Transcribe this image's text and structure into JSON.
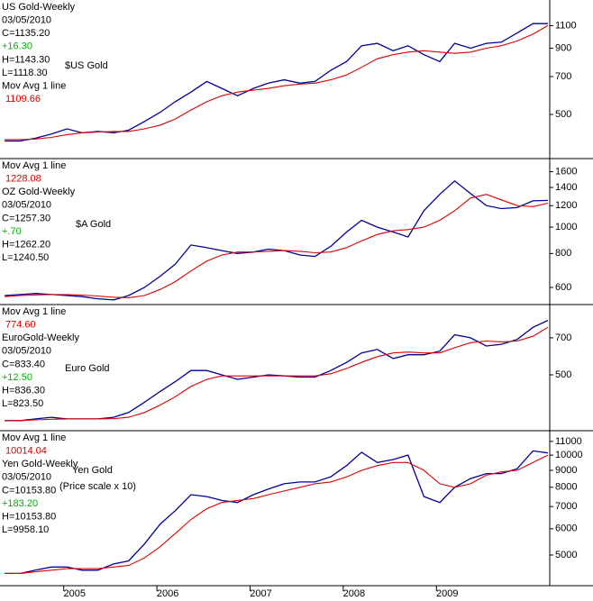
{
  "chart_data": [
    {
      "type": "line",
      "log": true,
      "ma_first": false,
      "series": [
        {
          "name": "US Gold-Weekly",
          "color": "#00009c",
          "values": [
            395,
            395,
            405,
            420,
            440,
            425,
            430,
            425,
            435,
            470,
            510,
            560,
            610,
            670,
            630,
            590,
            630,
            660,
            680,
            660,
            670,
            740,
            800,
            920,
            940,
            880,
            920,
            850,
            800,
            940,
            900,
            940,
            950,
            1030,
            1120,
            1120
          ]
        },
        {
          "name": "Mov Avg 1 line",
          "color": "#e00000",
          "values": [
            400,
            400,
            402,
            408,
            418,
            425,
            428,
            430,
            430,
            440,
            455,
            480,
            520,
            560,
            590,
            610,
            620,
            630,
            645,
            655,
            660,
            680,
            710,
            760,
            820,
            850,
            870,
            880,
            870,
            860,
            870,
            900,
            920,
            960,
            1020,
            1100
          ]
        }
      ],
      "info": [
        {
          "text": "03/05/2010",
          "color": "#000000"
        },
        {
          "text": "C=1135.20",
          "color": "#000000"
        },
        {
          "text": "+16.30",
          "color": "#00b000"
        },
        {
          "text": "H=1143.30",
          "color": "#000000"
        },
        {
          "text": "L=1118.30",
          "color": "#000000"
        }
      ],
      "ma_value": {
        "text": "1109.66",
        "color": "#e00000"
      },
      "annotations": [
        "$US Gold"
      ],
      "x": [
        2004.25,
        2004.42,
        2004.58,
        2004.75,
        2004.92,
        2005.08,
        2005.25,
        2005.42,
        2005.58,
        2005.75,
        2005.92,
        2006.08,
        2006.25,
        2006.42,
        2006.58,
        2006.75,
        2006.92,
        2007.08,
        2007.25,
        2007.42,
        2007.58,
        2007.75,
        2007.92,
        2008.08,
        2008.25,
        2008.42,
        2008.58,
        2008.75,
        2008.92,
        2009.08,
        2009.25,
        2009.42,
        2009.58,
        2009.75,
        2009.92,
        2010.08
      ],
      "xlim": [
        2004.2,
        2010.1
      ],
      "ylim": [
        338,
        1381
      ],
      "yticks": [
        500,
        700,
        900,
        1100
      ]
    },
    {
      "type": "line",
      "log": true,
      "ma_first": true,
      "series": [
        {
          "name": "OZ Gold-Weekly",
          "color": "#00009c",
          "values": [
            560,
            565,
            570,
            565,
            560,
            555,
            545,
            540,
            560,
            600,
            660,
            730,
            860,
            840,
            820,
            800,
            810,
            830,
            820,
            790,
            780,
            850,
            960,
            1060,
            1000,
            960,
            920,
            1150,
            1320,
            1480,
            1330,
            1200,
            1170,
            1180,
            1250,
            1255
          ]
        },
        {
          "name": "Mov Avg 1 line",
          "color": "#e00000",
          "values": [
            555,
            560,
            563,
            565,
            565,
            562,
            558,
            552,
            550,
            560,
            590,
            630,
            690,
            750,
            790,
            810,
            810,
            815,
            820,
            815,
            805,
            810,
            840,
            890,
            940,
            970,
            980,
            1000,
            1060,
            1150,
            1280,
            1320,
            1260,
            1200,
            1190,
            1225
          ]
        }
      ],
      "info": [
        {
          "text": "03/05/2010",
          "color": "#000000"
        },
        {
          "text": "C=1257.30",
          "color": "#000000"
        },
        {
          "text": "+.70",
          "color": "#00b000"
        },
        {
          "text": "H=1262.20",
          "color": "#000000"
        },
        {
          "text": "L=1240.50",
          "color": "#000000"
        }
      ],
      "ma_value": {
        "text": "1228.08",
        "color": "#e00000"
      },
      "annotations": [
        "$A Gold"
      ],
      "x": [
        2004.25,
        2004.42,
        2004.58,
        2004.75,
        2004.92,
        2005.08,
        2005.25,
        2005.42,
        2005.58,
        2005.75,
        2005.92,
        2006.08,
        2006.25,
        2006.42,
        2006.58,
        2006.75,
        2006.92,
        2007.08,
        2007.25,
        2007.42,
        2007.58,
        2007.75,
        2007.92,
        2008.08,
        2008.25,
        2008.42,
        2008.58,
        2008.75,
        2008.92,
        2009.08,
        2009.25,
        2009.42,
        2009.58,
        2009.75,
        2009.92,
        2010.08
      ],
      "xlim": [
        2004.2,
        2010.1
      ],
      "ylim": [
        519,
        1788
      ],
      "yticks": [
        600,
        800,
        1000,
        1200,
        1400,
        1600
      ]
    },
    {
      "type": "line",
      "log": true,
      "ma_first": true,
      "series": [
        {
          "name": "EuroGold-Weekly",
          "color": "#00009c",
          "values": [
            330,
            330,
            335,
            340,
            335,
            335,
            335,
            340,
            355,
            390,
            430,
            470,
            520,
            520,
            500,
            480,
            490,
            500,
            495,
            490,
            490,
            520,
            560,
            610,
            630,
            580,
            600,
            600,
            620,
            720,
            700,
            650,
            660,
            690,
            770,
            820
          ]
        },
        {
          "name": "Mov Avg 1 line",
          "color": "#e00000",
          "values": [
            330,
            330,
            332,
            334,
            335,
            335,
            335,
            336,
            340,
            355,
            380,
            410,
            450,
            480,
            495,
            495,
            495,
            495,
            495,
            495,
            495,
            505,
            530,
            560,
            590,
            610,
            615,
            610,
            610,
            640,
            670,
            680,
            675,
            680,
            710,
            770
          ]
        }
      ],
      "info": [
        {
          "text": "03/05/2010",
          "color": "#000000"
        },
        {
          "text": "C=833.40",
          "color": "#000000"
        },
        {
          "text": "+12.50",
          "color": "#00b000"
        },
        {
          "text": "H=836.30",
          "color": "#000000"
        },
        {
          "text": "L=823.50",
          "color": "#000000"
        }
      ],
      "ma_value": {
        "text": "774.60",
        "color": "#e00000"
      },
      "annotations": [
        "Euro Gold"
      ],
      "x": [
        2004.25,
        2004.42,
        2004.58,
        2004.75,
        2004.92,
        2005.08,
        2005.25,
        2005.42,
        2005.58,
        2005.75,
        2005.92,
        2006.08,
        2006.25,
        2006.42,
        2006.58,
        2006.75,
        2006.92,
        2007.08,
        2007.25,
        2007.42,
        2007.58,
        2007.75,
        2007.92,
        2008.08,
        2008.25,
        2008.42,
        2008.58,
        2008.75,
        2008.92,
        2009.08,
        2009.25,
        2009.42,
        2009.58,
        2009.75,
        2009.92,
        2010.08
      ],
      "xlim": [
        2004.2,
        2010.1
      ],
      "ylim": [
        301,
        947
      ],
      "yticks": [
        500,
        700
      ]
    },
    {
      "type": "line",
      "log": true,
      "ma_first": true,
      "series": [
        {
          "name": "Yen Gold-Weekly",
          "color": "#00009c",
          "values": [
            4400,
            4400,
            4500,
            4600,
            4600,
            4500,
            4500,
            4700,
            4800,
            5400,
            6200,
            6800,
            7600,
            7500,
            7300,
            7200,
            7600,
            7900,
            8200,
            8300,
            8300,
            8600,
            9300,
            10200,
            9500,
            9700,
            10000,
            7500,
            7200,
            8000,
            8500,
            8800,
            8800,
            9100,
            10300,
            10150
          ]
        },
        {
          "name": "Mov Avg 1 line",
          "color": "#e00000",
          "values": [
            4400,
            4400,
            4450,
            4500,
            4550,
            4550,
            4550,
            4600,
            4650,
            4900,
            5300,
            5800,
            6400,
            6900,
            7200,
            7300,
            7400,
            7600,
            7800,
            8000,
            8200,
            8300,
            8600,
            9000,
            9300,
            9500,
            9500,
            9000,
            8200,
            8000,
            8200,
            8700,
            8900,
            9000,
            9500,
            10000
          ]
        }
      ],
      "info": [
        {
          "text": "03/05/2010",
          "color": "#000000"
        },
        {
          "text": "C=10153.80",
          "color": "#000000"
        },
        {
          "text": "+183.20",
          "color": "#00b000"
        },
        {
          "text": "H=10153.80",
          "color": "#000000"
        },
        {
          "text": "L=9958.10",
          "color": "#000000"
        }
      ],
      "ma_value": {
        "text": "10014.04",
        "color": "#e00000"
      },
      "annotations": [
        "Yen Gold",
        "(Price scale x 10)"
      ],
      "x": [
        2004.25,
        2004.42,
        2004.58,
        2004.75,
        2004.92,
        2005.08,
        2005.25,
        2005.42,
        2005.58,
        2005.75,
        2005.92,
        2006.08,
        2006.25,
        2006.42,
        2006.58,
        2006.75,
        2006.92,
        2007.08,
        2007.25,
        2007.42,
        2007.58,
        2007.75,
        2007.92,
        2008.08,
        2008.25,
        2008.42,
        2008.58,
        2008.75,
        2008.92,
        2009.08,
        2009.25,
        2009.42,
        2009.58,
        2009.75,
        2009.92,
        2010.08
      ],
      "xlim": [
        2004.2,
        2010.1
      ],
      "ylim": [
        4042,
        11847
      ],
      "yticks": [
        5000,
        6000,
        7000,
        8000,
        9000,
        10000,
        11000
      ],
      "xticks": [
        2005,
        2006,
        2007,
        2008,
        2009
      ]
    }
  ]
}
